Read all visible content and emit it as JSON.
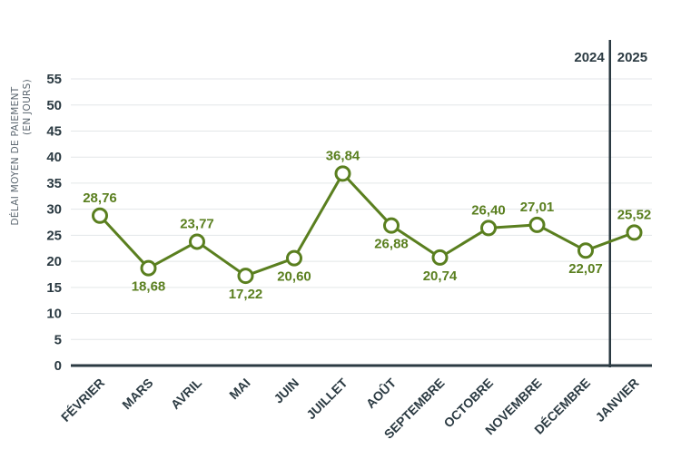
{
  "chart_data": {
    "type": "line",
    "categories": [
      "FÉVRIER",
      "MARS",
      "AVRIL",
      "MAI",
      "JUIN",
      "JUILLET",
      "AOÛT",
      "SEPTEMBRE",
      "OCTOBRE",
      "NOVEMBRE",
      "DÉCEMBRE",
      "JANVIER"
    ],
    "values": [
      28.76,
      18.68,
      23.77,
      17.22,
      20.6,
      36.84,
      26.88,
      20.74,
      26.4,
      27.01,
      22.07,
      25.52
    ],
    "data_labels": [
      "28,76",
      "18,68",
      "23,77",
      "17,22",
      "20,60",
      "36,84",
      "26,88",
      "20,74",
      "26,40",
      "27,01",
      "22,07",
      "25,52"
    ],
    "label_positions": [
      "above",
      "below",
      "above",
      "below",
      "below",
      "above",
      "below",
      "below",
      "above",
      "above",
      "below",
      "above"
    ],
    "ylabel_line1": "DÉLAI MOYEN DE PAIEMENT",
    "ylabel_line2": "(EN JOURS)",
    "yticks": [
      "0",
      "5",
      "10",
      "15",
      "20",
      "25",
      "30",
      "35",
      "40",
      "45",
      "50",
      "55"
    ],
    "ylim": [
      0,
      60
    ],
    "year_divider": {
      "after_category": "DÉCEMBRE",
      "left_label": "2024",
      "right_label": "2025"
    },
    "grid": true,
    "line_color": "#5a7f1f",
    "axis_color": "#2b3a42"
  }
}
